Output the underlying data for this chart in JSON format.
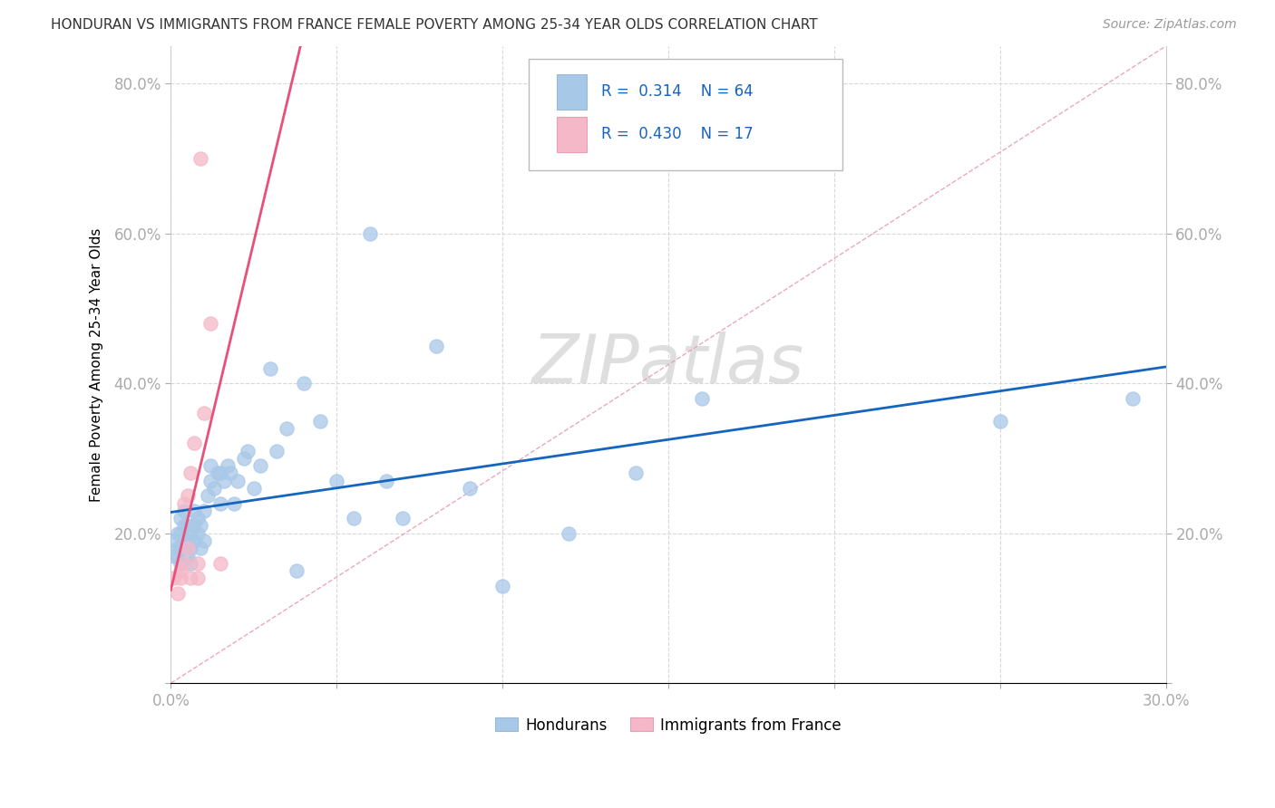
{
  "title": "HONDURAN VS IMMIGRANTS FROM FRANCE FEMALE POVERTY AMONG 25-34 YEAR OLDS CORRELATION CHART",
  "source": "Source: ZipAtlas.com",
  "ylabel": "Female Poverty Among 25-34 Year Olds",
  "xlim": [
    0.0,
    0.3
  ],
  "ylim": [
    0.0,
    0.85
  ],
  "xticks": [
    0.0,
    0.05,
    0.1,
    0.15,
    0.2,
    0.25,
    0.3
  ],
  "yticks": [
    0.0,
    0.2,
    0.4,
    0.6,
    0.8
  ],
  "blue_scatter_color": "#a8c8e8",
  "pink_scatter_color": "#f4b8c8",
  "blue_line_color": "#1565c0",
  "pink_line_color": "#e8507a",
  "diag_color": "#e8a0b0",
  "grid_color": "#d8d8d8",
  "R_blue": 0.314,
  "N_blue": 64,
  "R_pink": 0.43,
  "N_pink": 17,
  "legend_label_color": "#1565c0",
  "axis_tick_color": "#4488cc",
  "hondurans_x": [
    0.001,
    0.001,
    0.002,
    0.002,
    0.002,
    0.003,
    0.003,
    0.003,
    0.003,
    0.004,
    0.004,
    0.004,
    0.004,
    0.005,
    0.005,
    0.005,
    0.005,
    0.006,
    0.006,
    0.006,
    0.007,
    0.007,
    0.007,
    0.008,
    0.008,
    0.009,
    0.009,
    0.01,
    0.01,
    0.011,
    0.012,
    0.012,
    0.013,
    0.014,
    0.015,
    0.015,
    0.016,
    0.017,
    0.018,
    0.019,
    0.02,
    0.022,
    0.023,
    0.025,
    0.027,
    0.03,
    0.032,
    0.035,
    0.038,
    0.04,
    0.045,
    0.05,
    0.055,
    0.06,
    0.065,
    0.07,
    0.08,
    0.09,
    0.1,
    0.12,
    0.14,
    0.16,
    0.25,
    0.29
  ],
  "hondurans_y": [
    0.17,
    0.19,
    0.18,
    0.17,
    0.2,
    0.16,
    0.18,
    0.2,
    0.22,
    0.18,
    0.19,
    0.21,
    0.23,
    0.17,
    0.19,
    0.21,
    0.19,
    0.16,
    0.18,
    0.2,
    0.19,
    0.21,
    0.23,
    0.2,
    0.22,
    0.18,
    0.21,
    0.19,
    0.23,
    0.25,
    0.27,
    0.29,
    0.26,
    0.28,
    0.24,
    0.28,
    0.27,
    0.29,
    0.28,
    0.24,
    0.27,
    0.3,
    0.31,
    0.26,
    0.29,
    0.42,
    0.31,
    0.34,
    0.15,
    0.4,
    0.35,
    0.27,
    0.22,
    0.6,
    0.27,
    0.22,
    0.45,
    0.26,
    0.13,
    0.2,
    0.28,
    0.38,
    0.35,
    0.38
  ],
  "france_x": [
    0.001,
    0.002,
    0.003,
    0.003,
    0.004,
    0.004,
    0.005,
    0.005,
    0.006,
    0.006,
    0.007,
    0.008,
    0.008,
    0.009,
    0.01,
    0.012,
    0.015
  ],
  "france_y": [
    0.14,
    0.12,
    0.14,
    0.15,
    0.16,
    0.24,
    0.18,
    0.25,
    0.14,
    0.28,
    0.32,
    0.14,
    0.16,
    0.7,
    0.36,
    0.48,
    0.16
  ]
}
